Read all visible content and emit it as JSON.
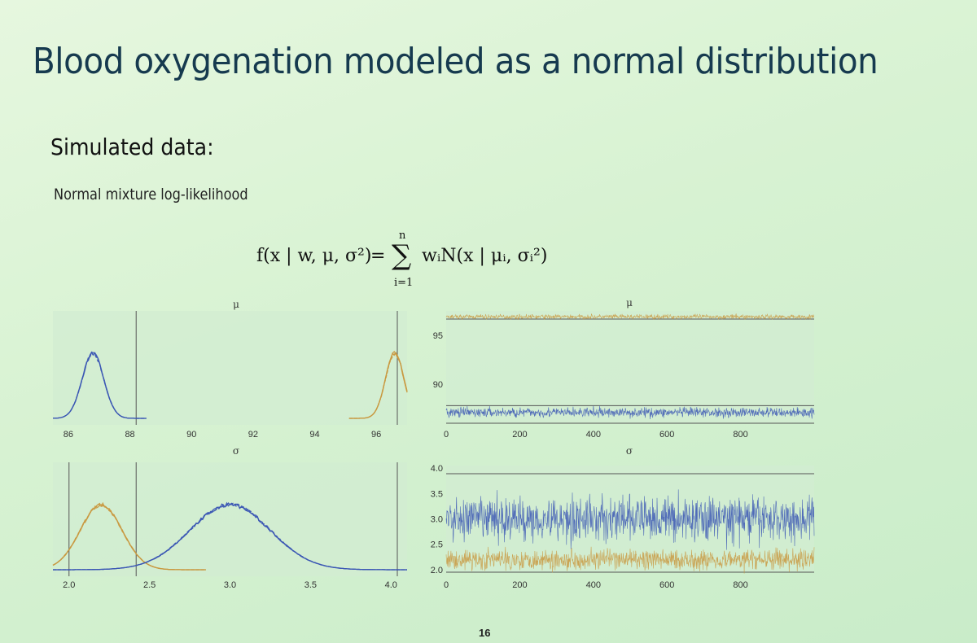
{
  "slide": {
    "title": "Blood oxygenation modeled as a normal distribution",
    "subtitle": "Simulated data:",
    "label": "Normal mixture log-likelihood",
    "page_number": "16"
  },
  "formula": {
    "lhs": "f(x | w, μ, σ²)",
    "eq": "=",
    "sum": "∑",
    "sum_top": "n",
    "sum_bottom": "i=1",
    "rhs": "wᵢN(x | μᵢ, σᵢ²)"
  },
  "colors": {
    "blue": "#3a55b4",
    "orange": "#c9983f",
    "panel": "#d2ecd2",
    "axis": "#555555"
  },
  "chart_data": [
    {
      "type": "line",
      "subtype": "density",
      "title": "μ",
      "xlim": [
        85.5,
        97
      ],
      "xticks": [
        "86",
        "88",
        "90",
        "92",
        "94",
        "96"
      ],
      "series": [
        {
          "color": "blue",
          "mean": 86.8,
          "sd": 0.35
        },
        {
          "color": "orange",
          "mean": 96.6,
          "sd": 0.3
        }
      ]
    },
    {
      "type": "line",
      "subtype": "trace",
      "title": "μ",
      "xlim": [
        0,
        1000
      ],
      "ylim": [
        86,
        97.5
      ],
      "xticks": [
        "0",
        "200",
        "400",
        "600",
        "800"
      ],
      "yticks": [
        "90",
        "95"
      ],
      "series": [
        {
          "color": "orange",
          "mean": 96.9,
          "noise": 0.12
        },
        {
          "color": "blue",
          "mean": 87.1,
          "noise": 0.25
        }
      ]
    },
    {
      "type": "line",
      "subtype": "density",
      "title": "σ",
      "xlim": [
        1.9,
        4.1
      ],
      "xticks": [
        "2.0",
        "2.5",
        "3.0",
        "3.5",
        "4.0"
      ],
      "series": [
        {
          "color": "orange",
          "mean": 2.2,
          "sd": 0.13
        },
        {
          "color": "blue",
          "mean": 3.0,
          "sd": 0.25
        }
      ]
    },
    {
      "type": "line",
      "subtype": "trace",
      "title": "σ",
      "xlim": [
        0,
        1000
      ],
      "ylim": [
        1.95,
        4.05
      ],
      "xticks": [
        "0",
        "200",
        "400",
        "600",
        "800"
      ],
      "yticks": [
        "2.0",
        "2.5",
        "3.0",
        "3.5",
        "4.0"
      ],
      "series": [
        {
          "color": "blue",
          "mean": 3.0,
          "noise": 0.22
        },
        {
          "color": "orange",
          "mean": 2.2,
          "noise": 0.1
        }
      ]
    }
  ]
}
